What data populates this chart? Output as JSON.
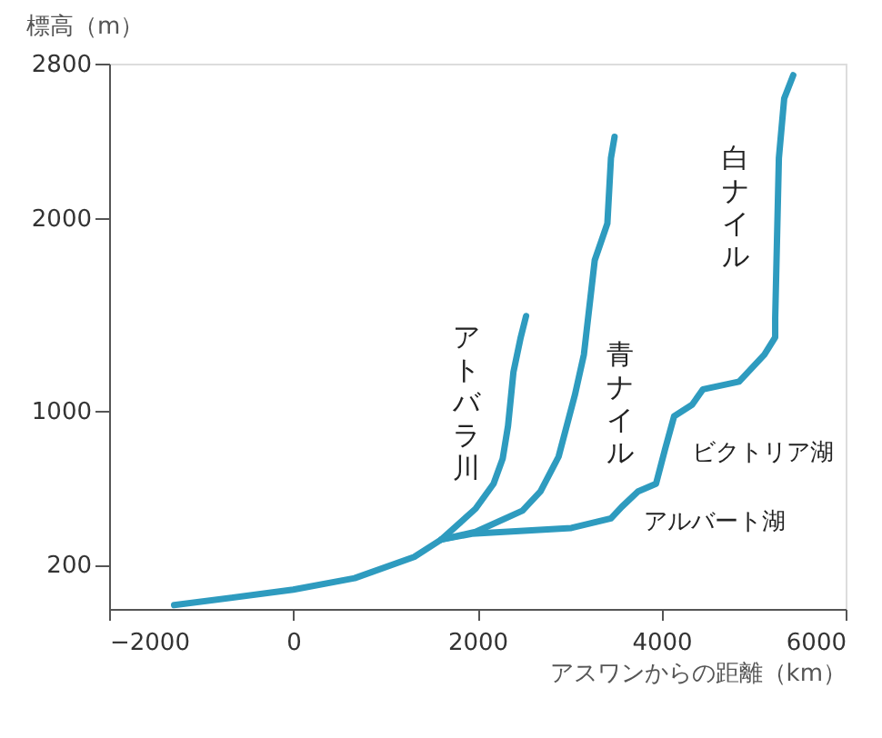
{
  "chart_data": {
    "type": "line",
    "xlabel": "アスワンからの距離（km）",
    "ylabel": "標高（m）",
    "xlim": [
      -2000,
      6000
    ],
    "xticks": [
      -2000,
      0,
      2000,
      4000,
      6000
    ],
    "ylim": [
      -30,
      2800
    ],
    "yticks": [
      200,
      1000,
      2000,
      2800
    ],
    "grid": false,
    "marker": "none",
    "line_style": "solid",
    "series": [
      {
        "name": "白ナイル",
        "color": "#2e9bbf",
        "x": [
          -1294,
          0,
          667,
          1314,
          1608,
          1941,
          3020,
          3451,
          3569,
          3745,
          3941,
          4039,
          4137,
          4333,
          4451,
          4843,
          5118,
          5235,
          5235,
          5275,
          5333,
          5431
        ],
        "values": [
          -10,
          70,
          130,
          240,
          330,
          360,
          390,
          440,
          500,
          580,
          620,
          800,
          970,
          1030,
          1110,
          1150,
          1290,
          1380,
          1480,
          2310,
          2620,
          2740
        ]
      },
      {
        "name": "アトバラ川",
        "color": "#2e9bbf",
        "x": [
          1608,
          1980,
          2176,
          2275,
          2333,
          2392,
          2471,
          2529
        ],
        "values": [
          330,
          490,
          620,
          750,
          920,
          1200,
          1380,
          1490
        ]
      },
      {
        "name": "青ナイル",
        "color": "#2e9bbf",
        "x": [
          1608,
          1980,
          2490,
          2686,
          2882,
          3059,
          3157,
          3275,
          3412,
          3451,
          3490
        ],
        "values": [
          330,
          370,
          480,
          580,
          760,
          1080,
          1290,
          1780,
          1970,
          2310,
          2420
        ]
      }
    ],
    "annotations": [
      "ビクトリア湖",
      "アルバート湖"
    ]
  }
}
